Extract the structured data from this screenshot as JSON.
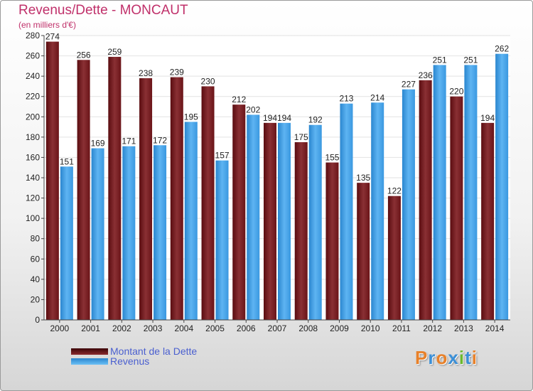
{
  "chart_data": {
    "type": "bar",
    "title": "Revenus/Dette - MONCAUT",
    "subtitle": "(en milliers d'€)",
    "xlabel": "",
    "ylabel": "",
    "ylim": [
      0,
      280
    ],
    "yticks": [
      0,
      20,
      40,
      60,
      80,
      100,
      120,
      140,
      160,
      180,
      200,
      220,
      240,
      260,
      280
    ],
    "grid": true,
    "legend_position": "bottom-left",
    "categories": [
      "2000",
      "2001",
      "2002",
      "2003",
      "2004",
      "2005",
      "2006",
      "2007",
      "2008",
      "2009",
      "2010",
      "2011",
      "2012",
      "2013",
      "2014"
    ],
    "series": [
      {
        "name": "Montant de la Dette",
        "color": "#7d1e22",
        "values": [
          274,
          256,
          259,
          238,
          239,
          230,
          212,
          194,
          175,
          155,
          135,
          122,
          236,
          220,
          194
        ]
      },
      {
        "name": "Revenus",
        "color": "#3d9ee6",
        "values": [
          151,
          169,
          171,
          172,
          195,
          157,
          202,
          194,
          192,
          213,
          214,
          227,
          251,
          251,
          262
        ]
      }
    ]
  },
  "logo": {
    "text": "Proxiti"
  }
}
